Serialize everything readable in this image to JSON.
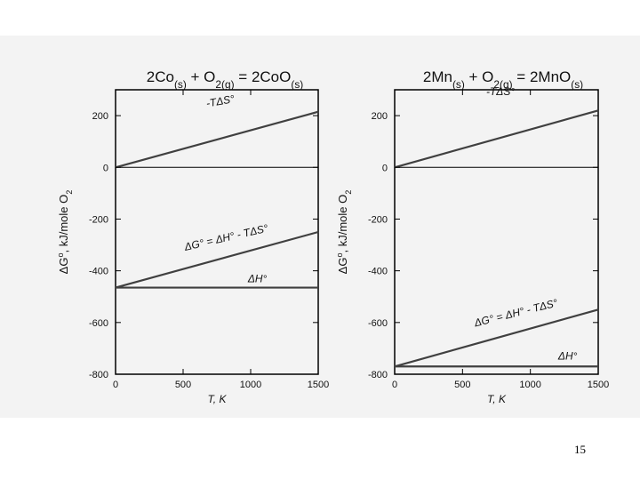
{
  "page": {
    "number": "15",
    "colors": {
      "background": "#f3f3f3",
      "line": "#404040",
      "axis": "#000000",
      "text": "#111111"
    }
  },
  "chart_data": [
    {
      "type": "line",
      "title": "2Co(s) + O2(g) = 2CoO(s)",
      "title_parts": [
        [
          "2Co",
          ""
        ],
        [
          "(s)",
          "sub"
        ],
        [
          " + O",
          ""
        ],
        [
          "2(g)",
          "sub"
        ],
        [
          " = 2CoO",
          ""
        ],
        [
          "(s)",
          "sub"
        ]
      ],
      "xlabel": "T, K",
      "ylabel": "ΔG°, kJ/mole O2",
      "ylabel_parts": [
        [
          "ΔG",
          ""
        ],
        [
          "o",
          "sup"
        ],
        [
          ", kJ/mole O",
          ""
        ],
        [
          "2",
          "sub"
        ]
      ],
      "xlim": [
        0,
        1500
      ],
      "ylim": [
        -800,
        300
      ],
      "xticks": [
        0,
        500,
        1000,
        1500
      ],
      "yticks": [
        200,
        0,
        -200,
        -400,
        -600,
        -800
      ],
      "series": [
        {
          "name": "-TΔS°",
          "x": [
            0,
            1500
          ],
          "y": [
            0,
            215
          ]
        },
        {
          "name": "ΔG° = ΔH° - TΔS°",
          "x": [
            0,
            1500
          ],
          "y": [
            -465,
            -250
          ]
        },
        {
          "name": "ΔH°",
          "x": [
            0,
            1500
          ],
          "y": [
            -465,
            -465
          ]
        },
        {
          "x": [
            0,
            1500
          ],
          "y": [
            0,
            0
          ]
        }
      ]
    },
    {
      "type": "line",
      "title": "2Mn(s) + O2(g) = 2MnO(s)",
      "title_parts": [
        [
          "2Mn",
          ""
        ],
        [
          "(s)",
          "sub"
        ],
        [
          " + O",
          ""
        ],
        [
          "2(g)",
          "sub"
        ],
        [
          " = 2MnO",
          ""
        ],
        [
          "(s)",
          "sub"
        ]
      ],
      "xlabel": "T, K",
      "ylabel": "ΔG°, kJ/mole O2",
      "ylabel_parts": [
        [
          "ΔG",
          ""
        ],
        [
          "o",
          "sup"
        ],
        [
          ", kJ/mole O",
          ""
        ],
        [
          "2",
          "sub"
        ]
      ],
      "xlim": [
        0,
        1500
      ],
      "ylim": [
        -800,
        300
      ],
      "xticks": [
        0,
        500,
        1000,
        1500
      ],
      "yticks": [
        200,
        0,
        -200,
        -400,
        -600,
        -800
      ],
      "series": [
        {
          "name": "-TΔS°",
          "x": [
            0,
            1500
          ],
          "y": [
            0,
            220
          ]
        },
        {
          "name": "ΔG° = ΔH° - TΔS°",
          "x": [
            0,
            1500
          ],
          "y": [
            -770,
            -550
          ]
        },
        {
          "name": "ΔH°",
          "x": [
            0,
            1500
          ],
          "y": [
            -770,
            -770
          ]
        },
        {
          "x": [
            0,
            1500
          ],
          "y": [
            0,
            0
          ]
        }
      ]
    }
  ]
}
